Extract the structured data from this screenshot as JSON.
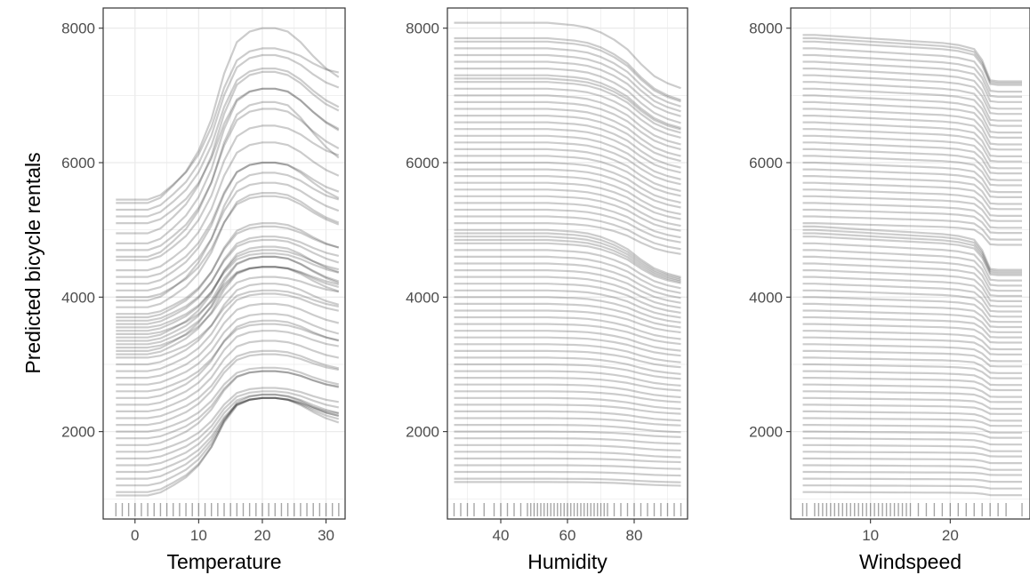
{
  "chart_data": {
    "type": "line",
    "ylabel": "Predicted bicycle rentals",
    "ylim": [
      700,
      8300
    ],
    "y_ticks": [
      2000,
      4000,
      6000,
      8000
    ],
    "grid": true,
    "line_color": "#000000",
    "line_alpha": 0.2,
    "panels": [
      {
        "feature": "temp",
        "xlabel": "Temperature",
        "xlim": [
          -5,
          33
        ],
        "x_ticks": [
          0,
          10,
          20,
          30
        ],
        "x_grid": [
          -5,
          0,
          5,
          10,
          15,
          20,
          25,
          30
        ],
        "x": [
          -3,
          0,
          2,
          4,
          6,
          8,
          10,
          12,
          14,
          16,
          18,
          20,
          22,
          24,
          26,
          28,
          30,
          32
        ],
        "curve_shape": [
          0,
          0,
          0,
          0.03,
          0.1,
          0.18,
          0.3,
          0.48,
          0.74,
          0.92,
          0.98,
          1.0,
          1.0,
          0.98,
          0.95,
          0.9,
          0.86,
          0.84
        ],
        "ice_start_values": [
          5450,
          5400,
          5300,
          5200,
          5100,
          4950,
          4800,
          4700,
          4600,
          4550,
          4400,
          4300,
          4200,
          4100,
          4000,
          3950,
          3850,
          3750,
          3700,
          3650,
          3600,
          3550,
          3500,
          3450,
          3400,
          3350,
          3300,
          3250,
          3200,
          3150,
          3100,
          3000,
          2900,
          2800,
          2700,
          2600,
          2500,
          2400,
          2300,
          2200,
          2100,
          2000,
          1900,
          1800,
          1700,
          1600,
          1500,
          1400,
          1300,
          1200,
          1100,
          1050
        ],
        "ice_rise": [
          2250,
          2600,
          2300,
          2200,
          2000,
          2400,
          2300,
          2100,
          2300,
          2000,
          1900,
          1700,
          1800,
          1600,
          1500,
          1900,
          1700,
          1300,
          1400,
          1200,
          1300,
          1100,
          1200,
          1000,
          1350,
          1250,
          1150,
          1050,
          1400,
          1300,
          1000,
          1200,
          1150,
          1100,
          1050,
          1000,
          1150,
          1100,
          1050,
          1000,
          1050,
          950,
          1000,
          1100,
          950,
          1000,
          1050,
          1100,
          1200,
          1300,
          1400,
          1500
        ],
        "ice_end_drop": [
          0.0,
          0.12,
          0.05,
          0.1,
          0.15,
          0.08,
          0.1,
          0.12,
          0.2,
          0.06,
          0.1,
          0.15,
          0.08,
          0.1,
          0.12,
          0.05,
          0.1,
          0.08,
          0.1,
          0.12,
          0.06,
          0.1,
          0.08,
          0.1,
          0.12,
          0.15,
          0.1,
          0.05,
          0.1,
          0.12,
          0.08,
          0.1,
          0.06,
          0.1,
          0.12,
          0.08,
          0.1,
          0.05,
          0.08,
          0.1,
          0.06,
          0.1,
          0.08,
          0.05,
          0.06,
          0.08,
          0.1,
          0.05,
          0.06,
          0.08,
          0.1,
          0.05
        ],
        "rug": [
          -3,
          -2,
          -1,
          0,
          1,
          2,
          3,
          4,
          5,
          6,
          7,
          8,
          9,
          10,
          11,
          12,
          13,
          14,
          15,
          16,
          17,
          18,
          19,
          20,
          21,
          22,
          23,
          24,
          25,
          26,
          27,
          28,
          29,
          30,
          31,
          32
        ]
      },
      {
        "feature": "hum",
        "xlabel": "Humidity",
        "xlim": [
          24,
          96
        ],
        "x_ticks": [
          40,
          60,
          80
        ],
        "x_grid": [
          30,
          40,
          50,
          60,
          70,
          80,
          90
        ],
        "x": [
          26,
          30,
          34,
          38,
          42,
          46,
          50,
          54,
          58,
          62,
          66,
          70,
          74,
          78,
          82,
          86,
          90,
          94
        ],
        "curve_shape": [
          0,
          0,
          0,
          0,
          0,
          0,
          0,
          0,
          0.01,
          0.02,
          0.04,
          0.08,
          0.14,
          0.22,
          0.34,
          0.44,
          0.5,
          0.54
        ],
        "ice_start_values": [
          8080,
          7850,
          7800,
          7700,
          7600,
          7500,
          7400,
          7300,
          7250,
          7200,
          7100,
          7000,
          6900,
          6800,
          6700,
          6600,
          6500,
          6400,
          6300,
          6200,
          6100,
          6000,
          5900,
          5800,
          5700,
          5600,
          5500,
          5400,
          5300,
          5200,
          5100,
          5000,
          4950,
          4900,
          4850,
          4800,
          4700,
          4600,
          4500,
          4400,
          4300,
          4200,
          4100,
          4000,
          3900,
          3800,
          3700,
          3600,
          3500,
          3400,
          3300,
          3200,
          3100,
          3000,
          2900,
          2800,
          2700,
          2600,
          2500,
          2400,
          2300,
          2200,
          2100,
          2000,
          1900,
          1800,
          1700,
          1600,
          1500,
          1400,
          1300,
          1250
        ],
        "ice_drop": [
          1800,
          1700,
          1650,
          1600,
          1550,
          1500,
          1500,
          1450,
          1400,
          1400,
          1350,
          1350,
          1300,
          1300,
          1250,
          1250,
          1200,
          1200,
          1150,
          1150,
          1100,
          1100,
          1050,
          1050,
          1000,
          1000,
          950,
          950,
          900,
          900,
          850,
          1300,
          1250,
          1200,
          1150,
          1100,
          1050,
          1000,
          950,
          900,
          850,
          800,
          750,
          700,
          650,
          600,
          600,
          550,
          550,
          500,
          500,
          450,
          450,
          400,
          400,
          350,
          350,
          300,
          300,
          250,
          250,
          200,
          200,
          150,
          150,
          150,
          150,
          100,
          100,
          100,
          100,
          100
        ],
        "rug": [
          26,
          28,
          30,
          32,
          35,
          38,
          40,
          42,
          44,
          46,
          48,
          49,
          50,
          51,
          52,
          53,
          54,
          55,
          56,
          57,
          58,
          59,
          60,
          61,
          62,
          63,
          64,
          65,
          66,
          67,
          68,
          69,
          70,
          71,
          72,
          74,
          76,
          78,
          80,
          82,
          84,
          86,
          88,
          90,
          92,
          94
        ]
      },
      {
        "feature": "windspeed",
        "xlabel": "Windspeed",
        "xlim": [
          0,
          30
        ],
        "x_ticks": [
          10,
          20
        ],
        "x_grid": [
          5,
          10,
          15,
          20,
          25
        ],
        "x": [
          1.5,
          3,
          5,
          7,
          9,
          11,
          13,
          15,
          17,
          19,
          21,
          23,
          24,
          25,
          26,
          27,
          28,
          29
        ],
        "curve_shape": [
          0,
          0,
          0.01,
          0.02,
          0.03,
          0.04,
          0.05,
          0.06,
          0.07,
          0.08,
          0.1,
          0.14,
          0.25,
          0.45,
          0.46,
          0.46,
          0.46,
          0.46
        ],
        "ice_start_values": [
          7900,
          7850,
          7800,
          7700,
          7600,
          7500,
          7400,
          7300,
          7200,
          7100,
          7000,
          6900,
          6800,
          6700,
          6600,
          6500,
          6400,
          6300,
          6200,
          6100,
          6000,
          5900,
          5800,
          5700,
          5600,
          5500,
          5400,
          5300,
          5200,
          5100,
          5050,
          5000,
          4950,
          4900,
          4800,
          4700,
          4600,
          4500,
          4400,
          4300,
          4200,
          4100,
          4000,
          3900,
          3800,
          3700,
          3600,
          3500,
          3400,
          3300,
          3200,
          3100,
          3000,
          2900,
          2800,
          2700,
          2600,
          2500,
          2400,
          2300,
          2200,
          2100,
          2000,
          1900,
          1800,
          1700,
          1600,
          1500,
          1400,
          1300,
          1200,
          1100
        ],
        "ice_drop": [
          1500,
          1450,
          1400,
          1400,
          1350,
          1300,
          1300,
          1250,
          1250,
          1200,
          1200,
          1150,
          1150,
          1100,
          1100,
          1050,
          1050,
          1000,
          1000,
          950,
          950,
          900,
          900,
          850,
          850,
          800,
          800,
          750,
          750,
          700,
          1400,
          1350,
          1300,
          1250,
          1200,
          1150,
          1100,
          1050,
          1000,
          950,
          900,
          850,
          800,
          750,
          700,
          650,
          600,
          600,
          550,
          550,
          500,
          500,
          450,
          450,
          400,
          400,
          350,
          350,
          300,
          300,
          250,
          250,
          200,
          200,
          200,
          150,
          150,
          150,
          100,
          100,
          100,
          100
        ],
        "rug": [
          1.5,
          2,
          3,
          3.5,
          4,
          4.5,
          5,
          5.5,
          6,
          6.5,
          7,
          7.5,
          8,
          8.5,
          9,
          9.5,
          10,
          10.5,
          11,
          11.5,
          12,
          12.5,
          13,
          13.5,
          14,
          14.5,
          15,
          16,
          17,
          18,
          19,
          20,
          21,
          22,
          23,
          24,
          25,
          26,
          27,
          29
        ]
      }
    ]
  }
}
